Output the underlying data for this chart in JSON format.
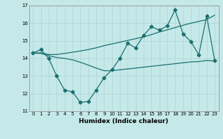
{
  "title": "",
  "xlabel": "Humidex (Indice chaleur)",
  "bg_color": "#c5e8e8",
  "grid_color": "#add4d4",
  "line_color": "#1a7070",
  "x": [
    0,
    1,
    2,
    3,
    4,
    5,
    6,
    7,
    8,
    9,
    10,
    11,
    12,
    13,
    14,
    15,
    16,
    17,
    18,
    19,
    20,
    21,
    22,
    23
  ],
  "line1_y": [
    14.3,
    14.5,
    14.0,
    13.0,
    12.2,
    12.1,
    11.5,
    11.55,
    12.2,
    12.9,
    13.35,
    14.0,
    14.85,
    14.6,
    15.3,
    15.8,
    15.6,
    15.85,
    16.75,
    15.4,
    14.95,
    14.2,
    16.4,
    13.9
  ],
  "line2_y": [
    14.3,
    14.32,
    14.22,
    14.22,
    14.28,
    14.35,
    14.42,
    14.5,
    14.6,
    14.72,
    14.82,
    14.92,
    15.02,
    15.12,
    15.22,
    15.35,
    15.5,
    15.62,
    15.75,
    15.88,
    16.0,
    16.1,
    16.2,
    16.45
  ],
  "line3_y": [
    14.3,
    14.28,
    14.15,
    14.05,
    14.0,
    13.92,
    13.78,
    13.62,
    13.45,
    13.3,
    13.3,
    13.35,
    13.4,
    13.45,
    13.5,
    13.55,
    13.6,
    13.65,
    13.7,
    13.75,
    13.8,
    13.82,
    13.88,
    13.85
  ],
  "ylim": [
    11,
    17
  ],
  "xlim": [
    -0.5,
    23.5
  ],
  "yticks": [
    11,
    12,
    13,
    14,
    15,
    16,
    17
  ],
  "xticks": [
    0,
    1,
    2,
    3,
    4,
    5,
    6,
    7,
    8,
    9,
    10,
    11,
    12,
    13,
    14,
    15,
    16,
    17,
    18,
    19,
    20,
    21,
    22,
    23
  ],
  "marker": "D",
  "markersize": 2.5,
  "linewidth": 0.9,
  "tick_fontsize": 5.0,
  "xlabel_fontsize": 6.5
}
